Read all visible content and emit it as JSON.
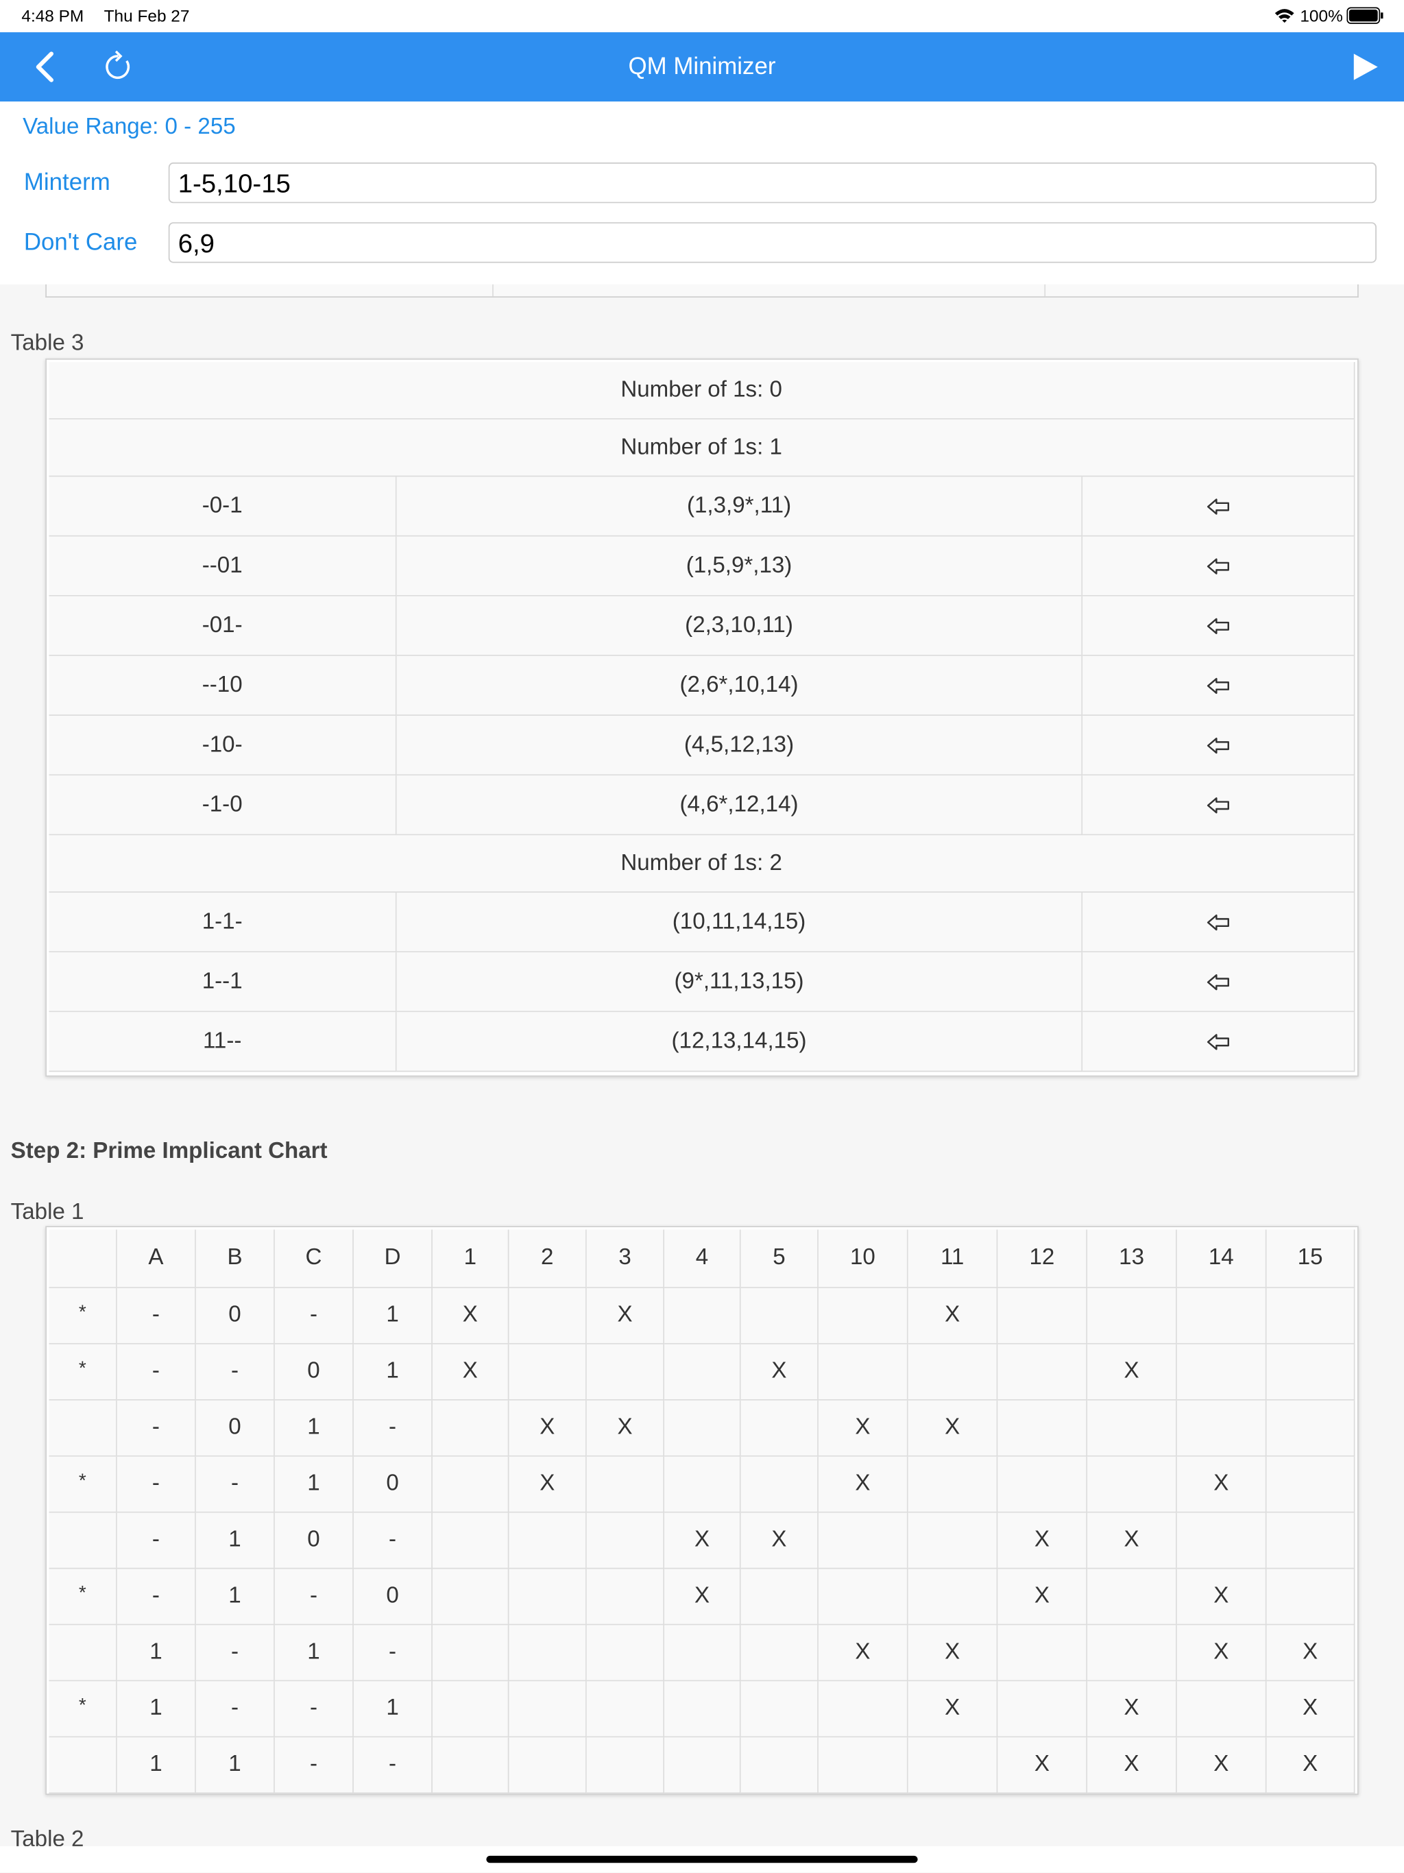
{
  "status_bar": {
    "time": "4:48 PM",
    "date": "Thu Feb 27",
    "battery": "100%"
  },
  "nav": {
    "title": "QM Minimizer"
  },
  "form": {
    "value_range": "Value Range: 0 - 255",
    "minterm_label": "Minterm",
    "minterm_value": "1-5,10-15",
    "dont_care_label": "Don't Care",
    "dont_care_value": "6,9"
  },
  "table3": {
    "label": "Table 3",
    "groups": [
      {
        "header": "Number of 1s: 0",
        "rows": []
      },
      {
        "header": "Number of 1s: 1",
        "rows": [
          [
            "-0-1",
            "(1,3,9*,11)"
          ],
          [
            "--01",
            "(1,5,9*,13)"
          ],
          [
            "-01-",
            "(2,3,10,11)"
          ],
          [
            "--10",
            "(2,6*,10,14)"
          ],
          [
            "-10-",
            "(4,5,12,13)"
          ],
          [
            "-1-0",
            "(4,6*,12,14)"
          ]
        ]
      },
      {
        "header": "Number of 1s: 2",
        "rows": [
          [
            "1-1-",
            "(10,11,14,15)"
          ],
          [
            "1--1",
            "(9*,11,13,15)"
          ],
          [
            "11--",
            "(12,13,14,15)"
          ]
        ]
      }
    ]
  },
  "step2_title": "Step 2: Prime Implicant Chart",
  "table1": {
    "label": "Table 1",
    "header": [
      "A",
      "B",
      "C",
      "D",
      "1",
      "2",
      "3",
      "4",
      "5",
      "10",
      "11",
      "12",
      "13",
      "14",
      "15"
    ],
    "rows": [
      {
        "mark": "*",
        "cells": [
          "-",
          "0",
          "-",
          "1",
          "X",
          null,
          "X",
          null,
          null,
          null,
          "X",
          null,
          null,
          null,
          null
        ]
      },
      {
        "mark": "*",
        "cells": [
          "-",
          "-",
          "0",
          "1",
          "X",
          null,
          null,
          null,
          "X",
          null,
          null,
          null,
          "X",
          null,
          null
        ]
      },
      {
        "cells": [
          "-",
          "0",
          "1",
          "-",
          null,
          "X",
          "X",
          null,
          null,
          "X",
          "X",
          null,
          null,
          null,
          null
        ]
      },
      {
        "mark": "*",
        "cells": [
          "-",
          "-",
          "1",
          "0",
          null,
          "X",
          null,
          null,
          null,
          "X",
          null,
          null,
          null,
          "X",
          null
        ]
      },
      {
        "cells": [
          "-",
          "1",
          "0",
          "-",
          null,
          null,
          null,
          "X",
          "X",
          null,
          null,
          "X",
          "X",
          null,
          null
        ]
      },
      {
        "mark": "*",
        "cells": [
          "-",
          "1",
          "-",
          "0",
          null,
          null,
          null,
          "X",
          null,
          null,
          null,
          "X",
          null,
          "X",
          null
        ]
      },
      {
        "cells": [
          "1",
          "-",
          "1",
          "-",
          null,
          null,
          null,
          null,
          null,
          "X",
          "X",
          null,
          null,
          "X",
          "X"
        ]
      },
      {
        "mark": "*",
        "cells": [
          "1",
          "-",
          "-",
          "1",
          null,
          null,
          null,
          null,
          null,
          null,
          "X",
          null,
          "X",
          null,
          "X"
        ]
      },
      {
        "cells": [
          "1",
          "1",
          "-",
          "-",
          null,
          null,
          null,
          null,
          null,
          null,
          null,
          "X",
          "X",
          "X",
          "X"
        ]
      }
    ]
  },
  "table2_label": "Table 2"
}
